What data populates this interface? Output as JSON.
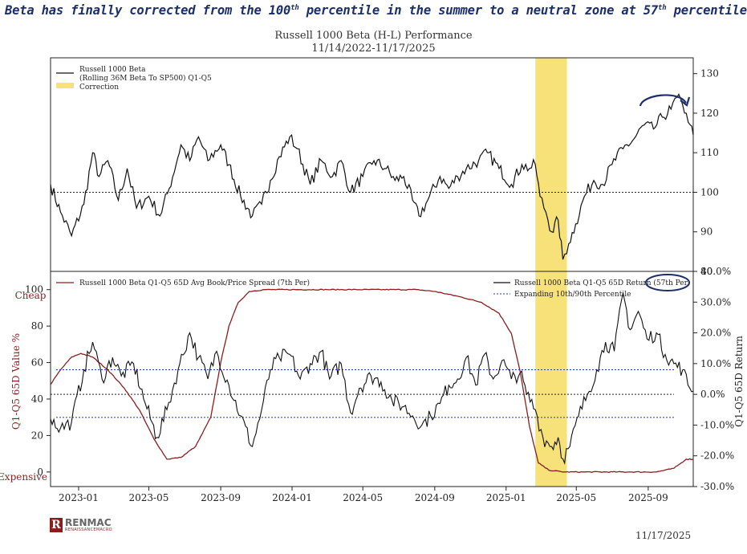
{
  "headline": {
    "pre": "Beta has finally corrected from the 100",
    "sup1": "th",
    "mid": " percentile in the summer to a neutral zone at 57",
    "sup2": "th",
    "post": " percentile"
  },
  "title": "Russell 1000 Beta (H-L) Performance",
  "subtitle": "11/14/2022-11/17/2025",
  "footer_date": "11/17/2025",
  "logo": {
    "mark": "R",
    "name": "RENMAC",
    "tagline": "RENAISSANCEMACRO"
  },
  "colors": {
    "beta": "#111111",
    "spread": "#8c1d1d",
    "correction": "#f7e27a",
    "percentile": "#2233cc",
    "annotation": "#1c2f6b"
  },
  "chart_data": [
    {
      "type": "line",
      "panel": "top",
      "x_range": [
        "2022-11-14",
        "2025-11-17"
      ],
      "y_range": [
        80,
        134
      ],
      "y_ticks": [
        80,
        90,
        100,
        110,
        120,
        130
      ],
      "y_tick_labels": [
        "80",
        "90",
        "100",
        "110",
        "120",
        "130"
      ],
      "reference_line": 100,
      "correction_band": [
        "2025-02-20",
        "2025-04-15"
      ],
      "legend": [
        "Russell 1000 Beta",
        "(Rolling 36M Beta To SP500) Q1-Q5",
        "Correction"
      ],
      "series": [
        {
          "name": "Russell 1000 Beta (Rolling 36M Beta To SP500) Q1-Q5",
          "points": [
            [
              "2022-11-14",
              102
            ],
            [
              "2022-12-01",
              95
            ],
            [
              "2022-12-20",
              89
            ],
            [
              "2023-01-10",
              97
            ],
            [
              "2023-01-25",
              110
            ],
            [
              "2023-02-05",
              104
            ],
            [
              "2023-02-20",
              108
            ],
            [
              "2023-03-10",
              98
            ],
            [
              "2023-03-25",
              106
            ],
            [
              "2023-04-10",
              96
            ],
            [
              "2023-05-01",
              99
            ],
            [
              "2023-05-20",
              94
            ],
            [
              "2023-06-05",
              101
            ],
            [
              "2023-06-25",
              112
            ],
            [
              "2023-07-10",
              108
            ],
            [
              "2023-07-25",
              114
            ],
            [
              "2023-08-10",
              108
            ],
            [
              "2023-09-01",
              112
            ],
            [
              "2023-09-15",
              107
            ],
            [
              "2023-10-05",
              99
            ],
            [
              "2023-10-25",
              94
            ],
            [
              "2023-11-10",
              97
            ],
            [
              "2023-11-25",
              103
            ],
            [
              "2023-12-10",
              109
            ],
            [
              "2023-12-28",
              114
            ],
            [
              "2024-01-10",
              111
            ],
            [
              "2024-02-01",
              102
            ],
            [
              "2024-02-20",
              108
            ],
            [
              "2024-03-10",
              104
            ],
            [
              "2024-03-25",
              108
            ],
            [
              "2024-04-10",
              100
            ],
            [
              "2024-05-01",
              104
            ],
            [
              "2024-05-20",
              108
            ],
            [
              "2024-06-10",
              106
            ],
            [
              "2024-06-25",
              103
            ],
            [
              "2024-07-10",
              104
            ],
            [
              "2024-07-25",
              98
            ],
            [
              "2024-08-05",
              94
            ],
            [
              "2024-08-20",
              98
            ],
            [
              "2024-09-10",
              104
            ],
            [
              "2024-09-25",
              101
            ],
            [
              "2024-10-10",
              104
            ],
            [
              "2024-10-25",
              106
            ],
            [
              "2024-11-15",
              108
            ],
            [
              "2024-11-30",
              110
            ],
            [
              "2024-12-20",
              106
            ],
            [
              "2025-01-10",
              102
            ],
            [
              "2025-01-28",
              107
            ],
            [
              "2025-02-10",
              106
            ],
            [
              "2025-02-20",
              107
            ],
            [
              "2025-02-28",
              99
            ],
            [
              "2025-03-10",
              95
            ],
            [
              "2025-03-20",
              90
            ],
            [
              "2025-03-31",
              93
            ],
            [
              "2025-04-08",
              83
            ],
            [
              "2025-04-18",
              87
            ],
            [
              "2025-04-30",
              92
            ],
            [
              "2025-05-15",
              99
            ],
            [
              "2025-05-31",
              103
            ],
            [
              "2025-06-15",
              102
            ],
            [
              "2025-07-01",
              107
            ],
            [
              "2025-07-20",
              111
            ],
            [
              "2025-08-05",
              113
            ],
            [
              "2025-08-25",
              117
            ],
            [
              "2025-09-10",
              116
            ],
            [
              "2025-09-25",
              119
            ],
            [
              "2025-10-10",
              121
            ],
            [
              "2025-10-20",
              124
            ],
            [
              "2025-10-30",
              122
            ],
            [
              "2025-11-05",
              120
            ],
            [
              "2025-11-12",
              117
            ],
            [
              "2025-11-17",
              114.5
            ]
          ]
        }
      ],
      "annotation": "curved-arrow-over-peak"
    },
    {
      "type": "line",
      "panel": "bottom",
      "x_range": [
        "2022-11-14",
        "2025-11-17"
      ],
      "x_ticks": [
        "2023-01",
        "2023-05",
        "2023-09",
        "2024-01",
        "2024-05",
        "2024-09",
        "2025-01",
        "2025-05",
        "2025-09"
      ],
      "left_axis": {
        "label": "Q1-Q5 65D Value %",
        "range": [
          -8,
          110
        ],
        "ticks": [
          0,
          20,
          40,
          60,
          80,
          100
        ],
        "top_note": "Cheap",
        "bottom_note": "Expensive"
      },
      "right_axis": {
        "label": "Q1-Q5 65D Return",
        "range": [
          -30,
          40
        ],
        "ticks": [
          -30,
          -20,
          -10,
          0,
          10,
          20,
          30,
          40
        ],
        "tick_labels": [
          "-30.0%",
          "-20.0%",
          "-10.0%",
          "0.0%",
          "10.0%",
          "20.0%",
          "30.0%",
          "40.0%"
        ]
      },
      "zero_line_right": 0,
      "percentile_lines_right": [
        {
          "label": "90th",
          "value": 8
        },
        {
          "label": "10th",
          "value": -7.5
        }
      ],
      "correction_band": [
        "2025-02-20",
        "2025-04-15"
      ],
      "legend": [
        "Russell 1000 Beta Q1-Q5 65D Avg Book/Price Spread (7th Per)",
        "Russell 1000 Beta Q1-Q5 65D Return (57th Per)",
        "Expanding 10th/90th Percentile"
      ],
      "series": [
        {
          "name": "Russell 1000 Beta Q1-Q5 65D Avg Book/Price Spread (7th Per)",
          "axis": "left",
          "points": [
            [
              "2022-11-14",
              48
            ],
            [
              "2022-12-01",
              56
            ],
            [
              "2022-12-20",
              63
            ],
            [
              "2023-01-05",
              65
            ],
            [
              "2023-01-25",
              63
            ],
            [
              "2023-02-20",
              56
            ],
            [
              "2023-03-20",
              46
            ],
            [
              "2023-04-15",
              34
            ],
            [
              "2023-05-10",
              18
            ],
            [
              "2023-06-01",
              7
            ],
            [
              "2023-06-25",
              8
            ],
            [
              "2023-07-20",
              14
            ],
            [
              "2023-08-15",
              30
            ],
            [
              "2023-09-01",
              60
            ],
            [
              "2023-09-15",
              80
            ],
            [
              "2023-10-01",
              93
            ],
            [
              "2023-10-20",
              99
            ],
            [
              "2023-11-15",
              100
            ],
            [
              "2024-03-01",
              100
            ],
            [
              "2024-08-01",
              100
            ],
            [
              "2024-09-01",
              99
            ],
            [
              "2024-10-15",
              96
            ],
            [
              "2024-11-20",
              93
            ],
            [
              "2024-12-20",
              87
            ],
            [
              "2025-01-10",
              76
            ],
            [
              "2025-01-25",
              55
            ],
            [
              "2025-02-10",
              25
            ],
            [
              "2025-02-25",
              5
            ],
            [
              "2025-03-15",
              1
            ],
            [
              "2025-04-10",
              0
            ],
            [
              "2025-05-15",
              0
            ],
            [
              "2025-08-01",
              0
            ],
            [
              "2025-09-15",
              0
            ],
            [
              "2025-10-15",
              2
            ],
            [
              "2025-11-05",
              7
            ],
            [
              "2025-11-17",
              7
            ]
          ]
        },
        {
          "name": "Russell 1000 Beta Q1-Q5 65D Return (57th Per)",
          "axis": "right",
          "points": [
            [
              "2022-11-14",
              -8
            ],
            [
              "2022-12-01",
              -11
            ],
            [
              "2022-12-20",
              -9
            ],
            [
              "2023-01-10",
              8
            ],
            [
              "2023-01-25",
              17
            ],
            [
              "2023-02-10",
              5
            ],
            [
              "2023-02-28",
              12
            ],
            [
              "2023-03-15",
              6
            ],
            [
              "2023-04-05",
              10
            ],
            [
              "2023-04-25",
              -3
            ],
            [
              "2023-05-15",
              -14
            ],
            [
              "2023-06-01",
              -5
            ],
            [
              "2023-06-20",
              8
            ],
            [
              "2023-07-10",
              20
            ],
            [
              "2023-07-25",
              12
            ],
            [
              "2023-08-10",
              5
            ],
            [
              "2023-08-25",
              14
            ],
            [
              "2023-09-15",
              3
            ],
            [
              "2023-10-05",
              -7
            ],
            [
              "2023-10-25",
              -17
            ],
            [
              "2023-11-10",
              -5
            ],
            [
              "2023-11-25",
              8
            ],
            [
              "2023-12-10",
              12
            ],
            [
              "2023-12-28",
              13
            ],
            [
              "2024-01-15",
              5
            ],
            [
              "2024-02-01",
              10
            ],
            [
              "2024-02-20",
              14
            ],
            [
              "2024-03-05",
              5
            ],
            [
              "2024-03-25",
              10
            ],
            [
              "2024-04-10",
              -6
            ],
            [
              "2024-04-25",
              2
            ],
            [
              "2024-05-15",
              6
            ],
            [
              "2024-06-01",
              4
            ],
            [
              "2024-06-20",
              -2
            ],
            [
              "2024-07-10",
              -4
            ],
            [
              "2024-07-25",
              -7
            ],
            [
              "2024-08-10",
              -10
            ],
            [
              "2024-08-25",
              -7
            ],
            [
              "2024-09-10",
              -3
            ],
            [
              "2024-09-25",
              3
            ],
            [
              "2024-10-10",
              5
            ],
            [
              "2024-10-25",
              12
            ],
            [
              "2024-11-10",
              3
            ],
            [
              "2024-11-25",
              13
            ],
            [
              "2024-12-10",
              5
            ],
            [
              "2024-12-25",
              11
            ],
            [
              "2025-01-10",
              5
            ],
            [
              "2025-01-25",
              7
            ],
            [
              "2025-02-05",
              0
            ],
            [
              "2025-02-20",
              -5
            ],
            [
              "2025-03-05",
              -14
            ],
            [
              "2025-03-20",
              -17
            ],
            [
              "2025-03-31",
              -14
            ],
            [
              "2025-04-08",
              -21
            ],
            [
              "2025-04-20",
              -17
            ],
            [
              "2025-05-05",
              -7
            ],
            [
              "2025-05-20",
              0
            ],
            [
              "2025-06-05",
              8
            ],
            [
              "2025-06-20",
              17
            ],
            [
              "2025-07-05",
              14
            ],
            [
              "2025-07-20",
              33
            ],
            [
              "2025-08-01",
              21
            ],
            [
              "2025-08-15",
              27
            ],
            [
              "2025-08-30",
              18
            ],
            [
              "2025-09-15",
              20
            ],
            [
              "2025-09-30",
              13
            ],
            [
              "2025-10-15",
              10
            ],
            [
              "2025-10-30",
              8
            ],
            [
              "2025-11-08",
              3
            ],
            [
              "2025-11-17",
              1
            ]
          ]
        }
      ]
    }
  ]
}
